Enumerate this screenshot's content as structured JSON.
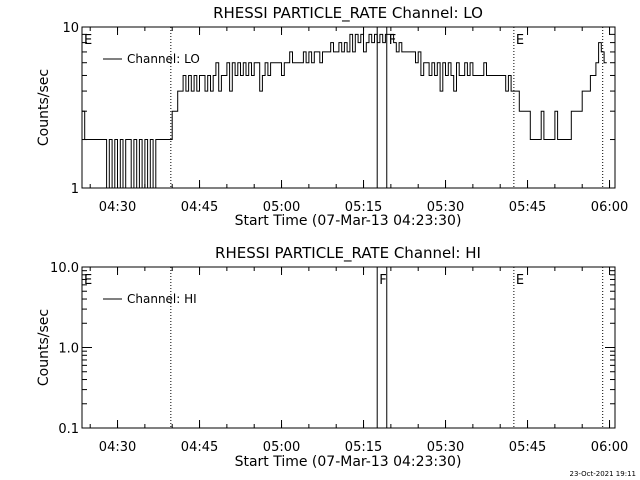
{
  "footer_timestamp": "23-Oct-2021 19:11",
  "chart_data": [
    {
      "type": "line",
      "title": "RHESSI PARTICLE_RATE Channel: LO",
      "xlabel": "Start Time (07-Mar-13 04:23:30)",
      "ylabel": "Counts/sec",
      "y_scale": "log",
      "ylim": [
        1,
        10
      ],
      "y_ticks": [
        {
          "v": 1,
          "label": "1"
        },
        {
          "v": 10,
          "label": "10"
        }
      ],
      "x_ticks": [
        "04:30",
        "04:45",
        "05:00",
        "05:15",
        "05:30",
        "05:45",
        "06:00"
      ],
      "legend": {
        "label": "Channel: LO",
        "position": "top-left"
      },
      "markers": [
        {
          "time": "04:23:30",
          "label": "E",
          "style": "none"
        },
        {
          "time": "04:39:45",
          "label": "",
          "style": "dotted"
        },
        {
          "time": "05:17:30",
          "label": "",
          "style": "solid"
        },
        {
          "time": "05:19:15",
          "label": "F",
          "style": "solid"
        },
        {
          "time": "05:42:30",
          "label": "E",
          "style": "dotted"
        },
        {
          "time": "05:58:45",
          "label": "",
          "style": "dotted"
        }
      ],
      "series": [
        {
          "name": "Channel: LO",
          "x": [
            "04:23:30",
            "04:24:00",
            "04:25:00",
            "04:27:00",
            "04:28:00",
            "04:28:30",
            "04:29:00",
            "04:29:30",
            "04:30:00",
            "04:30:30",
            "04:31:00",
            "04:31:30",
            "04:32:00",
            "04:32:30",
            "04:33:00",
            "04:33:30",
            "04:34:00",
            "04:34:30",
            "04:35:00",
            "04:35:30",
            "04:36:00",
            "04:36:30",
            "04:37:00",
            "04:37:30",
            "04:38:00",
            "04:38:30",
            "04:39:00",
            "04:39:30",
            "04:40:00",
            "04:40:30",
            "04:41:00",
            "04:41:30",
            "04:42:00",
            "04:42:30",
            "04:43:00",
            "04:43:30",
            "04:44:00",
            "04:44:30",
            "04:45:00",
            "04:45:30",
            "04:46:00",
            "04:46:30",
            "04:47:00",
            "04:47:30",
            "04:48:00",
            "04:48:30",
            "04:49:00",
            "04:49:30",
            "04:50:00",
            "04:50:30",
            "04:51:00",
            "04:51:30",
            "04:52:00",
            "04:52:30",
            "04:53:00",
            "04:53:30",
            "04:54:00",
            "04:54:30",
            "04:55:00",
            "04:55:30",
            "04:56:00",
            "04:56:30",
            "04:57:00",
            "04:57:30",
            "04:58:00",
            "04:58:30",
            "04:59:00",
            "04:59:30",
            "05:00:00",
            "05:00:30",
            "05:01:00",
            "05:01:30",
            "05:02:00",
            "05:02:30",
            "05:03:00",
            "05:03:30",
            "05:04:00",
            "05:04:30",
            "05:05:00",
            "05:05:30",
            "05:06:00",
            "05:06:30",
            "05:07:00",
            "05:07:30",
            "05:08:00",
            "05:08:30",
            "05:09:00",
            "05:09:30",
            "05:10:00",
            "05:10:30",
            "05:11:00",
            "05:11:30",
            "05:12:00",
            "05:12:30",
            "05:13:00",
            "05:13:30",
            "05:14:00",
            "05:14:30",
            "05:15:00",
            "05:15:30",
            "05:16:00",
            "05:16:30",
            "05:17:00",
            "05:17:30",
            "05:18:00",
            "05:18:30",
            "05:19:00",
            "05:19:30",
            "05:20:00",
            "05:20:30",
            "05:21:00",
            "05:21:30",
            "05:22:00",
            "05:22:30",
            "05:23:00",
            "05:23:30",
            "05:24:00",
            "05:24:30",
            "05:25:00",
            "05:25:30",
            "05:26:00",
            "05:26:30",
            "05:27:00",
            "05:27:30",
            "05:28:00",
            "05:28:30",
            "05:29:00",
            "05:29:30",
            "05:30:00",
            "05:30:30",
            "05:31:00",
            "05:31:30",
            "05:32:00",
            "05:32:30",
            "05:33:00",
            "05:33:30",
            "05:34:00",
            "05:34:30",
            "05:35:00",
            "05:35:30",
            "05:36:00",
            "05:36:30",
            "05:37:00",
            "05:37:30",
            "05:38:00",
            "05:38:30",
            "05:39:00",
            "05:39:30",
            "05:40:00",
            "05:40:30",
            "05:41:00",
            "05:41:30",
            "05:42:00",
            "05:42:30",
            "05:43:00",
            "05:43:30",
            "05:44:00",
            "05:44:30",
            "05:45:00",
            "05:45:30",
            "05:46:00",
            "05:46:30",
            "05:47:00",
            "05:47:30",
            "05:48:00",
            "05:48:30",
            "05:49:00",
            "05:49:30",
            "05:50:00",
            "05:50:30",
            "05:51:00",
            "05:51:30",
            "05:52:00",
            "05:52:30",
            "05:53:00",
            "05:53:30",
            "05:54:00",
            "05:54:30",
            "05:55:00",
            "05:55:30",
            "05:56:00",
            "05:56:30",
            "05:57:00",
            "05:57:30",
            "05:58:00",
            "05:58:30",
            "05:59:00"
          ],
          "y": [
            3,
            2,
            2,
            2,
            1,
            2,
            1,
            2,
            1,
            2,
            1,
            2,
            2,
            1,
            2,
            1,
            2,
            1,
            2,
            1,
            2,
            1,
            2,
            2,
            2,
            2,
            2,
            2,
            3,
            3,
            4,
            4,
            5,
            4,
            5,
            4,
            5,
            4,
            5,
            5,
            4,
            5,
            4,
            5,
            6,
            4,
            5,
            5,
            6,
            4,
            6,
            5,
            6,
            5,
            6,
            5,
            6,
            5,
            6,
            6,
            4,
            5,
            6,
            5,
            6,
            6,
            6,
            6,
            5,
            6,
            6,
            7,
            6,
            6,
            6,
            6,
            7,
            6,
            7,
            6,
            7,
            7,
            6,
            7,
            7,
            7,
            8,
            7,
            7,
            8,
            7,
            8,
            7,
            9,
            7,
            9,
            8,
            9,
            7,
            8,
            9,
            8,
            9,
            8,
            9,
            8,
            9,
            9,
            9,
            8,
            7,
            8,
            7,
            7,
            7,
            7,
            7,
            6,
            7,
            5,
            6,
            6,
            5,
            6,
            5,
            6,
            4,
            6,
            5,
            6,
            5,
            4,
            6,
            5,
            5,
            6,
            5,
            6,
            5,
            5,
            5,
            5,
            6,
            5,
            5,
            5,
            5,
            5,
            5,
            5,
            4,
            5,
            4,
            4,
            4,
            3,
            3,
            3,
            3,
            2,
            2,
            2,
            2,
            3,
            2,
            2,
            2,
            2,
            3,
            2,
            2,
            2,
            2,
            2,
            3,
            3,
            3,
            3,
            4,
            4,
            4,
            5,
            5,
            6,
            8,
            7,
            6
          ]
        }
      ]
    },
    {
      "type": "line",
      "title": "RHESSI PARTICLE_RATE Channel: HI",
      "xlabel": "Start Time (07-Mar-13 04:23:30)",
      "ylabel": "Counts/sec",
      "y_scale": "log",
      "ylim": [
        0.1,
        10
      ],
      "y_ticks": [
        {
          "v": 0.1,
          "label": "0.1"
        },
        {
          "v": 1,
          "label": "1.0"
        },
        {
          "v": 10,
          "label": "10.0"
        }
      ],
      "x_ticks": [
        "04:30",
        "04:45",
        "05:00",
        "05:15",
        "05:30",
        "05:45",
        "06:00"
      ],
      "legend": {
        "label": "Channel: HI",
        "position": "top-left"
      },
      "markers": [
        {
          "time": "04:23:30",
          "label": "E",
          "style": "none"
        },
        {
          "time": "04:39:45",
          "label": "",
          "style": "dotted"
        },
        {
          "time": "05:17:30",
          "label": "F",
          "style": "solid"
        },
        {
          "time": "05:19:15",
          "label": "",
          "style": "solid"
        },
        {
          "time": "05:42:30",
          "label": "E",
          "style": "dotted"
        },
        {
          "time": "05:58:45",
          "label": "",
          "style": "dotted"
        }
      ],
      "series": [
        {
          "name": "Channel: HI",
          "x": [],
          "y": []
        }
      ]
    }
  ]
}
